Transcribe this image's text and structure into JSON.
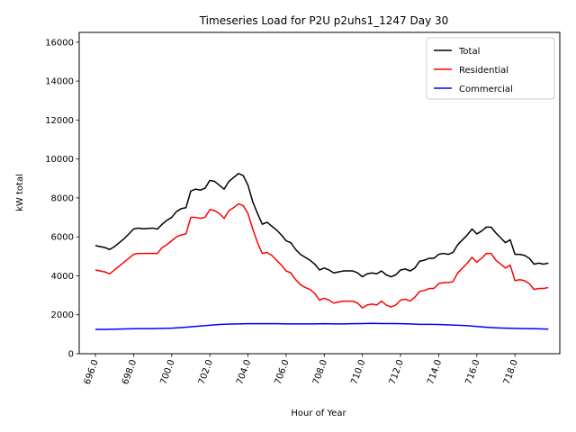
{
  "chart_data": {
    "type": "line",
    "title": "Timeseries Load for P2U p2uhs1_1247  Day 30",
    "xlabel": "Hour of Year",
    "ylabel": "kW total",
    "xlim": [
      695.15,
      720.35
    ],
    "ylim": [
      0,
      16500
    ],
    "x_ticks": [
      696,
      698,
      700,
      702,
      704,
      706,
      708,
      710,
      712,
      714,
      716,
      718
    ],
    "x_tick_labels": [
      "696.0",
      "698.0",
      "700.0",
      "702.0",
      "704.0",
      "706.0",
      "708.0",
      "710.0",
      "712.0",
      "714.0",
      "716.0",
      "718.0"
    ],
    "y_ticks": [
      0,
      2000,
      4000,
      6000,
      8000,
      10000,
      12000,
      14000,
      16000
    ],
    "y_tick_labels": [
      "0",
      "2000",
      "4000",
      "6000",
      "8000",
      "10000",
      "12000",
      "14000",
      "16000"
    ],
    "legend_position": "top-right",
    "series": [
      {
        "name": "Total",
        "color": "#000000",
        "points": [
          [
            696.0,
            5550
          ],
          [
            696.5,
            5450
          ],
          [
            696.75,
            5350
          ],
          [
            697.0,
            5500
          ],
          [
            697.5,
            5900
          ],
          [
            698.0,
            6400
          ],
          [
            698.25,
            6450
          ],
          [
            698.5,
            6420
          ],
          [
            699.0,
            6450
          ],
          [
            699.25,
            6400
          ],
          [
            699.5,
            6650
          ],
          [
            699.75,
            6850
          ],
          [
            700.0,
            7000
          ],
          [
            700.25,
            7300
          ],
          [
            700.5,
            7450
          ],
          [
            700.75,
            7500
          ],
          [
            701.0,
            8350
          ],
          [
            701.25,
            8450
          ],
          [
            701.5,
            8400
          ],
          [
            701.75,
            8500
          ],
          [
            702.0,
            8900
          ],
          [
            702.25,
            8850
          ],
          [
            702.5,
            8650
          ],
          [
            702.75,
            8450
          ],
          [
            703.0,
            8850
          ],
          [
            703.25,
            9050
          ],
          [
            703.5,
            9250
          ],
          [
            703.75,
            9150
          ],
          [
            704.0,
            8650
          ],
          [
            704.25,
            7800
          ],
          [
            704.5,
            7200
          ],
          [
            704.75,
            6650
          ],
          [
            705.0,
            6750
          ],
          [
            705.25,
            6550
          ],
          [
            705.5,
            6350
          ],
          [
            705.75,
            6100
          ],
          [
            706.0,
            5800
          ],
          [
            706.25,
            5700
          ],
          [
            706.5,
            5350
          ],
          [
            706.75,
            5100
          ],
          [
            707.0,
            4950
          ],
          [
            707.25,
            4800
          ],
          [
            707.5,
            4600
          ],
          [
            707.75,
            4300
          ],
          [
            708.0,
            4400
          ],
          [
            708.25,
            4300
          ],
          [
            708.5,
            4150
          ],
          [
            708.75,
            4200
          ],
          [
            709.0,
            4250
          ],
          [
            709.5,
            4250
          ],
          [
            709.75,
            4150
          ],
          [
            710.0,
            3950
          ],
          [
            710.25,
            4100
          ],
          [
            710.5,
            4150
          ],
          [
            710.75,
            4100
          ],
          [
            711.0,
            4250
          ],
          [
            711.25,
            4050
          ],
          [
            711.5,
            3950
          ],
          [
            711.75,
            4050
          ],
          [
            712.0,
            4300
          ],
          [
            712.25,
            4350
          ],
          [
            712.5,
            4250
          ],
          [
            712.75,
            4400
          ],
          [
            713.0,
            4750
          ],
          [
            713.25,
            4800
          ],
          [
            713.5,
            4900
          ],
          [
            713.75,
            4900
          ],
          [
            714.0,
            5100
          ],
          [
            714.25,
            5150
          ],
          [
            714.5,
            5100
          ],
          [
            714.75,
            5200
          ],
          [
            715.0,
            5600
          ],
          [
            715.25,
            5850
          ],
          [
            715.5,
            6100
          ],
          [
            715.75,
            6400
          ],
          [
            716.0,
            6150
          ],
          [
            716.25,
            6300
          ],
          [
            716.5,
            6500
          ],
          [
            716.75,
            6500
          ],
          [
            717.0,
            6200
          ],
          [
            717.25,
            5950
          ],
          [
            717.5,
            5700
          ],
          [
            717.75,
            5850
          ],
          [
            718.0,
            5100
          ],
          [
            718.25,
            5100
          ],
          [
            718.5,
            5050
          ],
          [
            718.75,
            4900
          ],
          [
            719.0,
            4600
          ],
          [
            719.25,
            4650
          ],
          [
            719.5,
            4600
          ],
          [
            719.75,
            4650
          ]
        ]
      },
      {
        "name": "Residential",
        "color": "#ff0000",
        "points": [
          [
            696.0,
            4300
          ],
          [
            696.5,
            4200
          ],
          [
            696.75,
            4100
          ],
          [
            697.0,
            4300
          ],
          [
            697.5,
            4700
          ],
          [
            698.0,
            5100
          ],
          [
            698.25,
            5150
          ],
          [
            698.5,
            5150
          ],
          [
            699.0,
            5150
          ],
          [
            699.25,
            5150
          ],
          [
            699.5,
            5450
          ],
          [
            699.75,
            5600
          ],
          [
            700.0,
            5800
          ],
          [
            700.25,
            6000
          ],
          [
            700.5,
            6100
          ],
          [
            700.75,
            6150
          ],
          [
            701.0,
            7000
          ],
          [
            701.25,
            7000
          ],
          [
            701.5,
            6950
          ],
          [
            701.75,
            7000
          ],
          [
            702.0,
            7400
          ],
          [
            702.25,
            7350
          ],
          [
            702.5,
            7200
          ],
          [
            702.75,
            6950
          ],
          [
            703.0,
            7350
          ],
          [
            703.25,
            7500
          ],
          [
            703.5,
            7700
          ],
          [
            703.75,
            7600
          ],
          [
            704.0,
            7200
          ],
          [
            704.25,
            6400
          ],
          [
            704.5,
            5700
          ],
          [
            704.75,
            5150
          ],
          [
            705.0,
            5200
          ],
          [
            705.25,
            5050
          ],
          [
            705.5,
            4800
          ],
          [
            705.75,
            4550
          ],
          [
            706.0,
            4250
          ],
          [
            706.25,
            4150
          ],
          [
            706.5,
            3800
          ],
          [
            706.75,
            3550
          ],
          [
            707.0,
            3400
          ],
          [
            707.25,
            3300
          ],
          [
            707.5,
            3100
          ],
          [
            707.75,
            2750
          ],
          [
            708.0,
            2850
          ],
          [
            708.25,
            2750
          ],
          [
            708.5,
            2600
          ],
          [
            708.75,
            2650
          ],
          [
            709.0,
            2700
          ],
          [
            709.5,
            2700
          ],
          [
            709.75,
            2600
          ],
          [
            710.0,
            2350
          ],
          [
            710.25,
            2500
          ],
          [
            710.5,
            2550
          ],
          [
            710.75,
            2500
          ],
          [
            711.0,
            2700
          ],
          [
            711.25,
            2500
          ],
          [
            711.5,
            2400
          ],
          [
            711.75,
            2500
          ],
          [
            712.0,
            2750
          ],
          [
            712.25,
            2800
          ],
          [
            712.5,
            2700
          ],
          [
            712.75,
            2900
          ],
          [
            713.0,
            3200
          ],
          [
            713.25,
            3250
          ],
          [
            713.5,
            3350
          ],
          [
            713.75,
            3350
          ],
          [
            714.0,
            3600
          ],
          [
            714.25,
            3650
          ],
          [
            714.5,
            3650
          ],
          [
            714.75,
            3700
          ],
          [
            715.0,
            4150
          ],
          [
            715.25,
            4400
          ],
          [
            715.5,
            4650
          ],
          [
            715.75,
            4950
          ],
          [
            716.0,
            4700
          ],
          [
            716.25,
            4900
          ],
          [
            716.5,
            5150
          ],
          [
            716.75,
            5150
          ],
          [
            717.0,
            4800
          ],
          [
            717.25,
            4600
          ],
          [
            717.5,
            4400
          ],
          [
            717.75,
            4550
          ],
          [
            718.0,
            3750
          ],
          [
            718.25,
            3800
          ],
          [
            718.5,
            3750
          ],
          [
            718.75,
            3600
          ],
          [
            719.0,
            3300
          ],
          [
            719.25,
            3350
          ],
          [
            719.5,
            3350
          ],
          [
            719.75,
            3400
          ]
        ]
      },
      {
        "name": "Commercial",
        "color": "#0000ff",
        "points": [
          [
            696.0,
            1250
          ],
          [
            696.5,
            1250
          ],
          [
            697.0,
            1260
          ],
          [
            697.5,
            1270
          ],
          [
            698.0,
            1280
          ],
          [
            698.5,
            1290
          ],
          [
            699.0,
            1290
          ],
          [
            699.5,
            1300
          ],
          [
            700.0,
            1310
          ],
          [
            700.5,
            1340
          ],
          [
            701.0,
            1380
          ],
          [
            701.5,
            1420
          ],
          [
            702.0,
            1460
          ],
          [
            702.5,
            1500
          ],
          [
            703.0,
            1520
          ],
          [
            703.5,
            1530
          ],
          [
            704.0,
            1540
          ],
          [
            704.5,
            1540
          ],
          [
            705.0,
            1540
          ],
          [
            705.5,
            1540
          ],
          [
            706.0,
            1530
          ],
          [
            706.5,
            1530
          ],
          [
            707.0,
            1530
          ],
          [
            707.5,
            1530
          ],
          [
            708.0,
            1540
          ],
          [
            708.5,
            1530
          ],
          [
            709.0,
            1530
          ],
          [
            709.5,
            1540
          ],
          [
            710.0,
            1550
          ],
          [
            710.5,
            1560
          ],
          [
            711.0,
            1550
          ],
          [
            711.5,
            1550
          ],
          [
            712.0,
            1540
          ],
          [
            712.5,
            1530
          ],
          [
            713.0,
            1510
          ],
          [
            713.5,
            1510
          ],
          [
            714.0,
            1500
          ],
          [
            714.5,
            1480
          ],
          [
            715.0,
            1460
          ],
          [
            715.5,
            1440
          ],
          [
            716.0,
            1400
          ],
          [
            716.5,
            1360
          ],
          [
            717.0,
            1330
          ],
          [
            717.5,
            1310
          ],
          [
            718.0,
            1300
          ],
          [
            718.5,
            1290
          ],
          [
            719.0,
            1280
          ],
          [
            719.5,
            1270
          ],
          [
            719.75,
            1260
          ]
        ]
      }
    ]
  }
}
